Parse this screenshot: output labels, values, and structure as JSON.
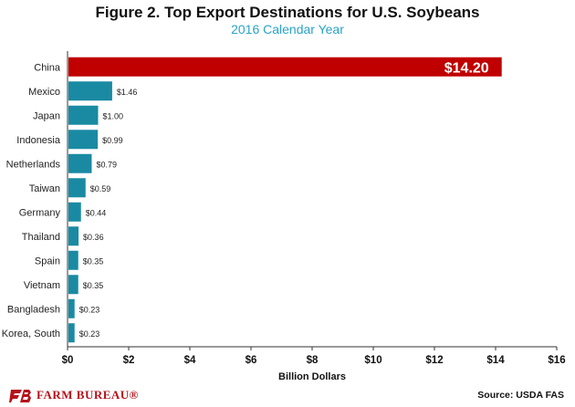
{
  "chart_data": {
    "type": "bar",
    "orientation": "horizontal",
    "title": "Figure 2. Top Export Destinations for U.S. Soybeans",
    "subtitle": "2016 Calendar Year",
    "xlabel": "Billion Dollars",
    "ylabel": "",
    "xlim": [
      0,
      16
    ],
    "xticks": [
      0,
      2,
      4,
      6,
      8,
      10,
      12,
      14,
      16
    ],
    "xtick_labels": [
      "$0",
      "$2",
      "$4",
      "$6",
      "$8",
      "$10",
      "$12",
      "$14",
      "$16"
    ],
    "categories": [
      "China",
      "Mexico",
      "Japan",
      "Indonesia",
      "Netherlands",
      "Taiwan",
      "Germany",
      "Thailand",
      "Spain",
      "Vietnam",
      "Bangladesh",
      "Korea, South"
    ],
    "values": [
      14.2,
      1.46,
      1.0,
      0.99,
      0.79,
      0.59,
      0.44,
      0.36,
      0.35,
      0.35,
      0.23,
      0.23
    ],
    "data_labels": [
      "$14.20",
      "$1.46",
      "$1.00",
      "$0.99",
      "$0.79",
      "$0.59",
      "$0.44",
      "$0.36",
      "$0.35",
      "$0.35",
      "$0.23",
      "$0.23"
    ],
    "colors": {
      "highlight": "#c00000",
      "default": "#1a8aa3",
      "subtitle": "#2aa3c6"
    },
    "grid": false
  },
  "footer": {
    "logo_text": "FARM BUREAU®",
    "source": "Source: USDA FAS"
  }
}
